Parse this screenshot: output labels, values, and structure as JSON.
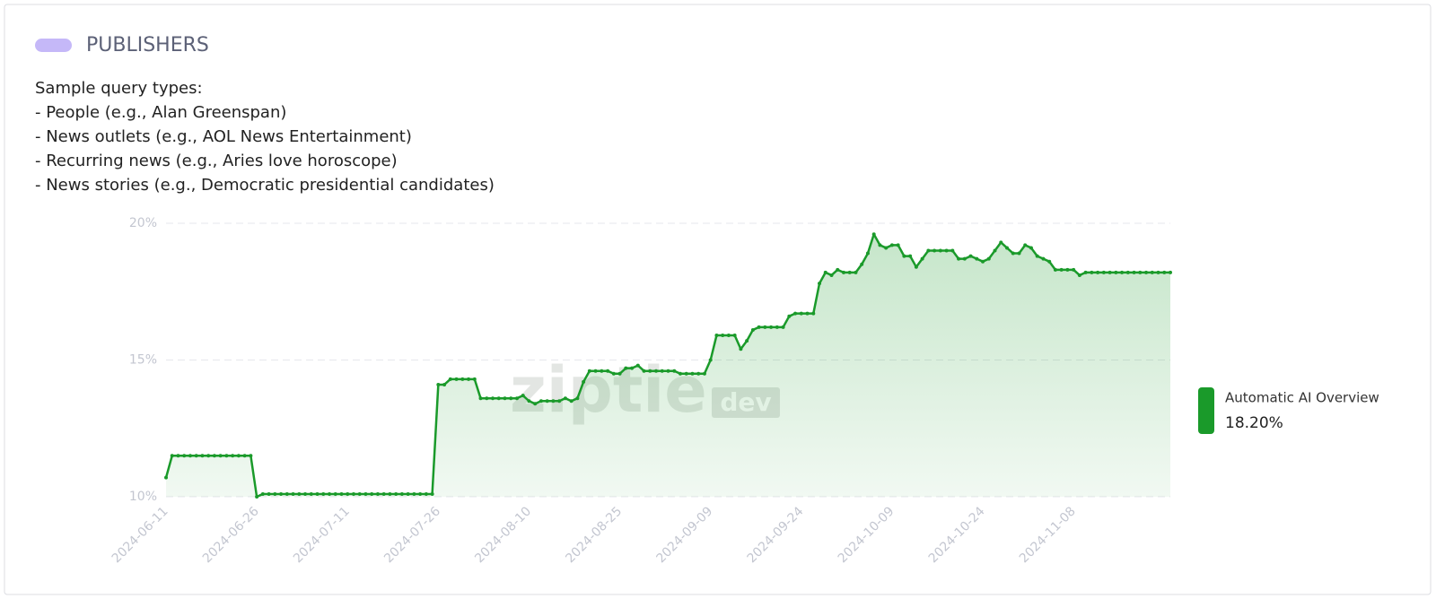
{
  "header": {
    "title": "PUBLISHERS"
  },
  "description": [
    "Sample query types:",
    "- People (e.g., Alan Greenspan)",
    "- News outlets (e.g., AOL News Entertainment)",
    "- Recurring news (e.g., Aries love horoscope)",
    "- News stories (e.g., Democratic presidential candidates)"
  ],
  "chart_data": {
    "type": "area",
    "watermark": "ziptie",
    "watermark_badge": "dev",
    "x": [
      "2024-06-11",
      "2024-06-12",
      "2024-06-13",
      "2024-06-14",
      "2024-06-15",
      "2024-06-16",
      "2024-06-17",
      "2024-06-18",
      "2024-06-19",
      "2024-06-20",
      "2024-06-21",
      "2024-06-22",
      "2024-06-23",
      "2024-06-24",
      "2024-06-25",
      "2024-06-26",
      "2024-06-27",
      "2024-06-28",
      "2024-06-29",
      "2024-06-30",
      "2024-07-01",
      "2024-07-02",
      "2024-07-03",
      "2024-07-04",
      "2024-07-05",
      "2024-07-06",
      "2024-07-07",
      "2024-07-08",
      "2024-07-09",
      "2024-07-10",
      "2024-07-11",
      "2024-07-12",
      "2024-07-13",
      "2024-07-14",
      "2024-07-15",
      "2024-07-16",
      "2024-07-17",
      "2024-07-18",
      "2024-07-19",
      "2024-07-20",
      "2024-07-21",
      "2024-07-22",
      "2024-07-23",
      "2024-07-24",
      "2024-07-25",
      "2024-07-26",
      "2024-07-27",
      "2024-07-28",
      "2024-07-29",
      "2024-07-30",
      "2024-07-31",
      "2024-08-01",
      "2024-08-02",
      "2024-08-03",
      "2024-08-04",
      "2024-08-05",
      "2024-08-06",
      "2024-08-07",
      "2024-08-08",
      "2024-08-09",
      "2024-08-10",
      "2024-08-11",
      "2024-08-12",
      "2024-08-13",
      "2024-08-14",
      "2024-08-15",
      "2024-08-16",
      "2024-08-17",
      "2024-08-18",
      "2024-08-19",
      "2024-08-20",
      "2024-08-21",
      "2024-08-22",
      "2024-08-23",
      "2024-08-24",
      "2024-08-25",
      "2024-08-26",
      "2024-08-27",
      "2024-08-28",
      "2024-08-29",
      "2024-08-30",
      "2024-08-31",
      "2024-09-01",
      "2024-09-02",
      "2024-09-03",
      "2024-09-04",
      "2024-09-05",
      "2024-09-06",
      "2024-09-07",
      "2024-09-08",
      "2024-09-09",
      "2024-09-10",
      "2024-09-11",
      "2024-09-12",
      "2024-09-13",
      "2024-09-14",
      "2024-09-15",
      "2024-09-16",
      "2024-09-17",
      "2024-09-18",
      "2024-09-19",
      "2024-09-20",
      "2024-09-21",
      "2024-09-22",
      "2024-09-23",
      "2024-09-24",
      "2024-09-25",
      "2024-09-26",
      "2024-09-27",
      "2024-09-28",
      "2024-09-29",
      "2024-09-30",
      "2024-10-01",
      "2024-10-02",
      "2024-10-03",
      "2024-10-04",
      "2024-10-05",
      "2024-10-06",
      "2024-10-07",
      "2024-10-08",
      "2024-10-09",
      "2024-10-10",
      "2024-10-11",
      "2024-10-12",
      "2024-10-13",
      "2024-10-14",
      "2024-10-15",
      "2024-10-16",
      "2024-10-17",
      "2024-10-18",
      "2024-10-19",
      "2024-10-20",
      "2024-10-21",
      "2024-10-22",
      "2024-10-23",
      "2024-10-24",
      "2024-10-25",
      "2024-10-26",
      "2024-10-27",
      "2024-10-28",
      "2024-10-29",
      "2024-10-30",
      "2024-10-31",
      "2024-11-01",
      "2024-11-02",
      "2024-11-03",
      "2024-11-04",
      "2024-11-05",
      "2024-11-06",
      "2024-11-07",
      "2024-11-08",
      "2024-11-09",
      "2024-11-10",
      "2024-11-11",
      "2024-11-12",
      "2024-11-13",
      "2024-11-14",
      "2024-11-15",
      "2024-11-16",
      "2024-11-17",
      "2024-11-18",
      "2024-11-19",
      "2024-11-20",
      "2024-11-21",
      "2024-11-22",
      "2024-11-23",
      "2024-11-24"
    ],
    "series": [
      {
        "name": "Automatic AI Overview",
        "color": "#1a9a2a",
        "legend_value": "18.20%",
        "values": [
          10.7,
          11.5,
          11.5,
          11.5,
          11.5,
          11.5,
          11.5,
          11.5,
          11.5,
          11.5,
          11.5,
          11.5,
          11.5,
          11.5,
          11.5,
          10.0,
          10.1,
          10.1,
          10.1,
          10.1,
          10.1,
          10.1,
          10.1,
          10.1,
          10.1,
          10.1,
          10.1,
          10.1,
          10.1,
          10.1,
          10.1,
          10.1,
          10.1,
          10.1,
          10.1,
          10.1,
          10.1,
          10.1,
          10.1,
          10.1,
          10.1,
          10.1,
          10.1,
          10.1,
          10.1,
          14.1,
          14.1,
          14.3,
          14.3,
          14.3,
          14.3,
          14.3,
          13.6,
          13.6,
          13.6,
          13.6,
          13.6,
          13.6,
          13.6,
          13.7,
          13.5,
          13.4,
          13.5,
          13.5,
          13.5,
          13.5,
          13.6,
          13.5,
          13.6,
          14.2,
          14.6,
          14.6,
          14.6,
          14.6,
          14.5,
          14.5,
          14.7,
          14.7,
          14.8,
          14.6,
          14.6,
          14.6,
          14.6,
          14.6,
          14.6,
          14.5,
          14.5,
          14.5,
          14.5,
          14.5,
          15.0,
          15.9,
          15.9,
          15.9,
          15.9,
          15.4,
          15.7,
          16.1,
          16.2,
          16.2,
          16.2,
          16.2,
          16.2,
          16.6,
          16.7,
          16.7,
          16.7,
          16.7,
          17.8,
          18.2,
          18.1,
          18.3,
          18.2,
          18.2,
          18.2,
          18.5,
          18.9,
          19.6,
          19.2,
          19.1,
          19.2,
          19.2,
          18.8,
          18.8,
          18.4,
          18.7,
          19.0,
          19.0,
          19.0,
          19.0,
          19.0,
          18.7,
          18.7,
          18.8,
          18.7,
          18.6,
          18.7,
          19.0,
          19.3,
          19.1,
          18.9,
          18.9,
          19.2,
          19.1,
          18.8,
          18.7,
          18.6,
          18.3,
          18.3,
          18.3,
          18.3,
          18.1,
          18.2,
          18.2,
          18.2,
          18.2,
          18.2,
          18.2,
          18.2,
          18.2,
          18.2,
          18.2,
          18.2,
          18.2,
          18.2,
          18.2,
          18.2
        ]
      }
    ],
    "ylim": [
      10,
      20
    ],
    "yticks": [
      {
        "value": 10,
        "label": "10%"
      },
      {
        "value": 15,
        "label": "15%"
      },
      {
        "value": 20,
        "label": "20%"
      }
    ],
    "xticks": [
      "2024-06-11",
      "2024-06-26",
      "2024-07-11",
      "2024-07-26",
      "2024-08-10",
      "2024-08-25",
      "2024-09-09",
      "2024-09-24",
      "2024-10-09",
      "2024-10-24",
      "2024-11-08"
    ],
    "grid": true,
    "legend": "right"
  }
}
